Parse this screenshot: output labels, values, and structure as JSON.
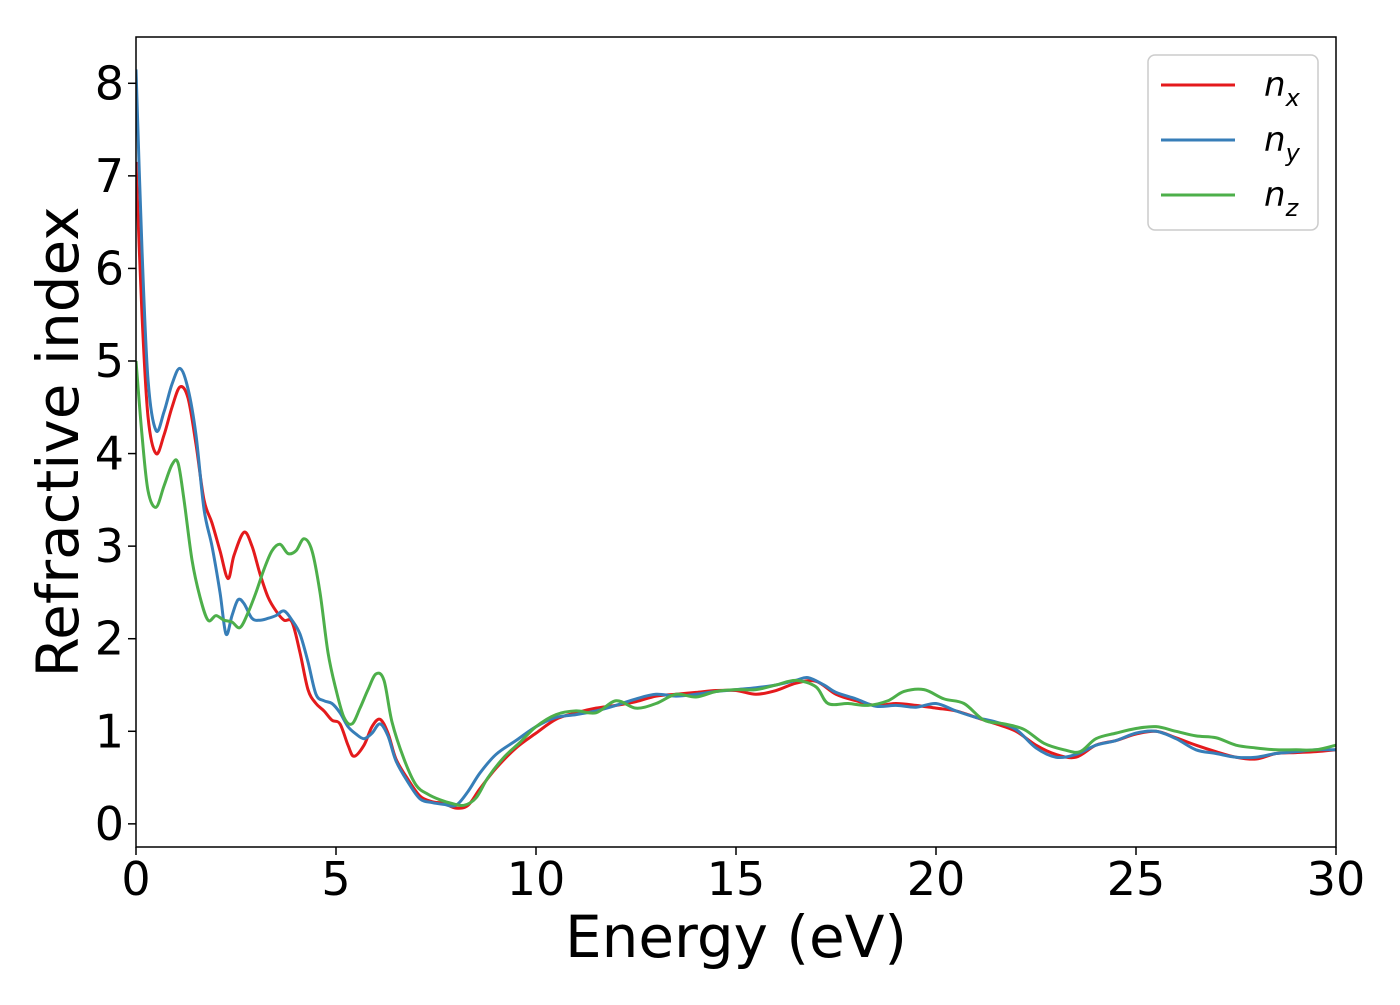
{
  "chart_data": {
    "type": "line",
    "xlabel": "Energy (eV)",
    "ylabel": "Refractive index",
    "xlim": [
      0,
      30
    ],
    "ylim": [
      -0.25,
      8.5
    ],
    "xticks": [
      0,
      5,
      10,
      15,
      20,
      25,
      30
    ],
    "yticks": [
      0,
      1,
      2,
      3,
      4,
      5,
      6,
      7,
      8
    ],
    "grid": false,
    "legend_position": "top-right",
    "series": [
      {
        "name": "n",
        "subscript": "x",
        "color": "#e41a1c",
        "points": [
          [
            0,
            7.15
          ],
          [
            0.15,
            5.5
          ],
          [
            0.3,
            4.4
          ],
          [
            0.5,
            4.0
          ],
          [
            0.7,
            4.2
          ],
          [
            0.9,
            4.5
          ],
          [
            1.1,
            4.72
          ],
          [
            1.3,
            4.6
          ],
          [
            1.5,
            4.1
          ],
          [
            1.7,
            3.5
          ],
          [
            1.9,
            3.25
          ],
          [
            2.1,
            2.95
          ],
          [
            2.3,
            2.65
          ],
          [
            2.45,
            2.9
          ],
          [
            2.7,
            3.15
          ],
          [
            2.9,
            3.0
          ],
          [
            3.1,
            2.7
          ],
          [
            3.3,
            2.45
          ],
          [
            3.5,
            2.3
          ],
          [
            3.7,
            2.2
          ],
          [
            3.9,
            2.18
          ],
          [
            4.1,
            1.85
          ],
          [
            4.3,
            1.45
          ],
          [
            4.5,
            1.3
          ],
          [
            4.7,
            1.22
          ],
          [
            4.9,
            1.12
          ],
          [
            5.1,
            1.08
          ],
          [
            5.3,
            0.85
          ],
          [
            5.45,
            0.73
          ],
          [
            5.7,
            0.85
          ],
          [
            5.9,
            1.05
          ],
          [
            6.1,
            1.13
          ],
          [
            6.3,
            0.98
          ],
          [
            6.5,
            0.7
          ],
          [
            6.8,
            0.48
          ],
          [
            7.1,
            0.3
          ],
          [
            7.4,
            0.24
          ],
          [
            7.7,
            0.22
          ],
          [
            8.0,
            0.17
          ],
          [
            8.3,
            0.2
          ],
          [
            8.6,
            0.38
          ],
          [
            9.0,
            0.6
          ],
          [
            9.5,
            0.82
          ],
          [
            10.0,
            0.98
          ],
          [
            10.5,
            1.13
          ],
          [
            11.0,
            1.2
          ],
          [
            11.5,
            1.25
          ],
          [
            12.0,
            1.28
          ],
          [
            12.5,
            1.32
          ],
          [
            13.0,
            1.38
          ],
          [
            13.5,
            1.4
          ],
          [
            14.0,
            1.42
          ],
          [
            14.5,
            1.44
          ],
          [
            15.0,
            1.44
          ],
          [
            15.5,
            1.4
          ],
          [
            16.0,
            1.44
          ],
          [
            16.5,
            1.52
          ],
          [
            17.0,
            1.54
          ],
          [
            17.5,
            1.4
          ],
          [
            18.0,
            1.33
          ],
          [
            18.5,
            1.28
          ],
          [
            19.0,
            1.3
          ],
          [
            19.5,
            1.28
          ],
          [
            20.0,
            1.25
          ],
          [
            20.5,
            1.22
          ],
          [
            21.0,
            1.15
          ],
          [
            21.5,
            1.08
          ],
          [
            22.0,
            1.0
          ],
          [
            22.5,
            0.85
          ],
          [
            23.0,
            0.75
          ],
          [
            23.5,
            0.72
          ],
          [
            24.0,
            0.85
          ],
          [
            24.5,
            0.9
          ],
          [
            25.0,
            0.97
          ],
          [
            25.5,
            1.0
          ],
          [
            26.0,
            0.93
          ],
          [
            26.5,
            0.85
          ],
          [
            27.0,
            0.78
          ],
          [
            27.5,
            0.72
          ],
          [
            28.0,
            0.7
          ],
          [
            28.5,
            0.76
          ],
          [
            29.0,
            0.77
          ],
          [
            29.5,
            0.78
          ],
          [
            30.0,
            0.8
          ]
        ]
      },
      {
        "name": "n",
        "subscript": "y",
        "color": "#377eb8",
        "points": [
          [
            0,
            8.15
          ],
          [
            0.15,
            6.2
          ],
          [
            0.3,
            4.8
          ],
          [
            0.5,
            4.25
          ],
          [
            0.7,
            4.45
          ],
          [
            0.9,
            4.75
          ],
          [
            1.1,
            4.92
          ],
          [
            1.3,
            4.7
          ],
          [
            1.5,
            4.2
          ],
          [
            1.7,
            3.4
          ],
          [
            1.9,
            3.0
          ],
          [
            2.1,
            2.5
          ],
          [
            2.25,
            2.05
          ],
          [
            2.4,
            2.25
          ],
          [
            2.55,
            2.42
          ],
          [
            2.7,
            2.38
          ],
          [
            2.9,
            2.22
          ],
          [
            3.1,
            2.2
          ],
          [
            3.3,
            2.22
          ],
          [
            3.5,
            2.25
          ],
          [
            3.7,
            2.3
          ],
          [
            3.9,
            2.2
          ],
          [
            4.1,
            2.05
          ],
          [
            4.3,
            1.75
          ],
          [
            4.5,
            1.4
          ],
          [
            4.7,
            1.33
          ],
          [
            4.9,
            1.3
          ],
          [
            5.1,
            1.2
          ],
          [
            5.3,
            1.05
          ],
          [
            5.5,
            0.97
          ],
          [
            5.7,
            0.92
          ],
          [
            5.9,
            0.98
          ],
          [
            6.1,
            1.08
          ],
          [
            6.3,
            0.95
          ],
          [
            6.5,
            0.68
          ],
          [
            6.8,
            0.45
          ],
          [
            7.1,
            0.27
          ],
          [
            7.4,
            0.23
          ],
          [
            7.7,
            0.21
          ],
          [
            8.0,
            0.2
          ],
          [
            8.3,
            0.35
          ],
          [
            8.6,
            0.55
          ],
          [
            9.0,
            0.75
          ],
          [
            9.5,
            0.9
          ],
          [
            10.0,
            1.05
          ],
          [
            10.5,
            1.15
          ],
          [
            11.0,
            1.18
          ],
          [
            11.5,
            1.22
          ],
          [
            12.0,
            1.28
          ],
          [
            12.5,
            1.35
          ],
          [
            13.0,
            1.4
          ],
          [
            13.5,
            1.38
          ],
          [
            14.0,
            1.4
          ],
          [
            14.5,
            1.43
          ],
          [
            15.0,
            1.45
          ],
          [
            15.5,
            1.47
          ],
          [
            16.0,
            1.5
          ],
          [
            16.5,
            1.55
          ],
          [
            16.8,
            1.58
          ],
          [
            17.2,
            1.5
          ],
          [
            17.5,
            1.42
          ],
          [
            18.0,
            1.35
          ],
          [
            18.5,
            1.27
          ],
          [
            19.0,
            1.28
          ],
          [
            19.5,
            1.26
          ],
          [
            20.0,
            1.3
          ],
          [
            20.5,
            1.22
          ],
          [
            21.0,
            1.15
          ],
          [
            21.5,
            1.1
          ],
          [
            22.0,
            1.02
          ],
          [
            22.5,
            0.82
          ],
          [
            23.0,
            0.72
          ],
          [
            23.5,
            0.75
          ],
          [
            24.0,
            0.85
          ],
          [
            24.5,
            0.9
          ],
          [
            25.0,
            0.98
          ],
          [
            25.5,
            1.0
          ],
          [
            26.0,
            0.92
          ],
          [
            26.5,
            0.8
          ],
          [
            27.0,
            0.76
          ],
          [
            27.5,
            0.72
          ],
          [
            28.0,
            0.72
          ],
          [
            28.5,
            0.76
          ],
          [
            29.0,
            0.78
          ],
          [
            29.5,
            0.8
          ],
          [
            30.0,
            0.8
          ]
        ]
      },
      {
        "name": "n",
        "subscript": "z",
        "color": "#4daf4a",
        "points": [
          [
            0,
            5.0
          ],
          [
            0.15,
            4.2
          ],
          [
            0.3,
            3.6
          ],
          [
            0.5,
            3.42
          ],
          [
            0.7,
            3.65
          ],
          [
            0.9,
            3.88
          ],
          [
            1.05,
            3.9
          ],
          [
            1.2,
            3.5
          ],
          [
            1.4,
            2.85
          ],
          [
            1.6,
            2.45
          ],
          [
            1.8,
            2.2
          ],
          [
            2.0,
            2.25
          ],
          [
            2.2,
            2.2
          ],
          [
            2.4,
            2.18
          ],
          [
            2.6,
            2.12
          ],
          [
            2.8,
            2.28
          ],
          [
            3.0,
            2.5
          ],
          [
            3.2,
            2.75
          ],
          [
            3.4,
            2.95
          ],
          [
            3.6,
            3.02
          ],
          [
            3.8,
            2.92
          ],
          [
            4.0,
            2.95
          ],
          [
            4.2,
            3.08
          ],
          [
            4.4,
            2.95
          ],
          [
            4.6,
            2.5
          ],
          [
            4.8,
            1.85
          ],
          [
            5.0,
            1.45
          ],
          [
            5.2,
            1.15
          ],
          [
            5.4,
            1.08
          ],
          [
            5.6,
            1.25
          ],
          [
            5.8,
            1.45
          ],
          [
            6.0,
            1.62
          ],
          [
            6.2,
            1.55
          ],
          [
            6.4,
            1.1
          ],
          [
            6.7,
            0.7
          ],
          [
            7.0,
            0.42
          ],
          [
            7.3,
            0.32
          ],
          [
            7.6,
            0.26
          ],
          [
            7.9,
            0.22
          ],
          [
            8.2,
            0.2
          ],
          [
            8.5,
            0.28
          ],
          [
            8.8,
            0.5
          ],
          [
            9.2,
            0.72
          ],
          [
            9.6,
            0.88
          ],
          [
            10.0,
            1.05
          ],
          [
            10.5,
            1.18
          ],
          [
            11.0,
            1.22
          ],
          [
            11.5,
            1.2
          ],
          [
            12.0,
            1.33
          ],
          [
            12.5,
            1.25
          ],
          [
            13.0,
            1.3
          ],
          [
            13.5,
            1.4
          ],
          [
            14.0,
            1.37
          ],
          [
            14.5,
            1.43
          ],
          [
            15.0,
            1.45
          ],
          [
            15.5,
            1.45
          ],
          [
            16.0,
            1.5
          ],
          [
            16.5,
            1.55
          ],
          [
            17.0,
            1.48
          ],
          [
            17.3,
            1.3
          ],
          [
            17.8,
            1.3
          ],
          [
            18.3,
            1.28
          ],
          [
            18.8,
            1.33
          ],
          [
            19.2,
            1.43
          ],
          [
            19.7,
            1.45
          ],
          [
            20.2,
            1.35
          ],
          [
            20.7,
            1.3
          ],
          [
            21.2,
            1.12
          ],
          [
            21.7,
            1.08
          ],
          [
            22.2,
            1.02
          ],
          [
            22.7,
            0.87
          ],
          [
            23.2,
            0.8
          ],
          [
            23.6,
            0.78
          ],
          [
            24.0,
            0.92
          ],
          [
            24.5,
            0.98
          ],
          [
            25.0,
            1.03
          ],
          [
            25.5,
            1.05
          ],
          [
            26.0,
            1.0
          ],
          [
            26.5,
            0.95
          ],
          [
            27.0,
            0.93
          ],
          [
            27.5,
            0.85
          ],
          [
            28.0,
            0.82
          ],
          [
            28.5,
            0.8
          ],
          [
            29.0,
            0.8
          ],
          [
            29.5,
            0.8
          ],
          [
            30.0,
            0.85
          ]
        ]
      }
    ]
  }
}
